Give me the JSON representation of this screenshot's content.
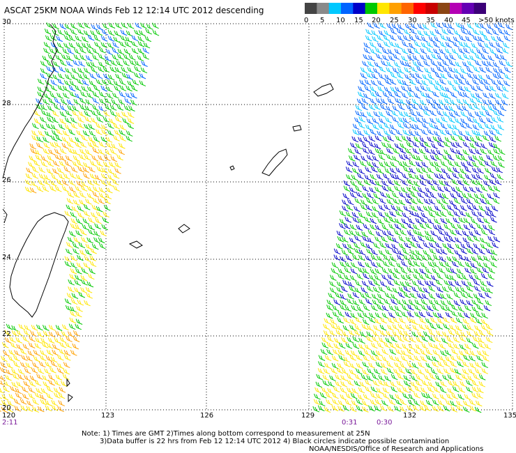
{
  "title": "ASCAT 25KM NOAA Winds  Feb 12 12:14 UTC 2012 descending",
  "colorbar": {
    "colors": [
      "#444444",
      "#8a8a8a",
      "#00c8ff",
      "#0064ff",
      "#0000c8",
      "#00c800",
      "#ffe600",
      "#ffa000",
      "#ff6400",
      "#ff0000",
      "#c80000",
      "#8b4513",
      "#b400b4",
      "#6400b4",
      "#3c0078"
    ],
    "labels": [
      "0",
      "5",
      "10",
      "15",
      "20",
      "25",
      "30",
      "35",
      "40",
      "45",
      ">50 knots"
    ]
  },
  "axes": {
    "lat_labels": [
      "30",
      "28",
      "26",
      "24",
      "22",
      "20"
    ],
    "lon_labels": [
      "120",
      "123",
      "126",
      "129",
      "132",
      "135"
    ]
  },
  "swath_times": [
    "2:11",
    "0:31",
    "0:30"
  ],
  "notes": {
    "line1": "Note: 1) Times are GMT 2)Times along bottom correspond to measurement at 25N",
    "line2": "3)Data buffer is 22 hrs from Feb 12 12:14 UTC 2012 4) Black circles indicate possible contamination",
    "credit": "NOAA/NESDIS/Office of Research and Applications"
  }
}
